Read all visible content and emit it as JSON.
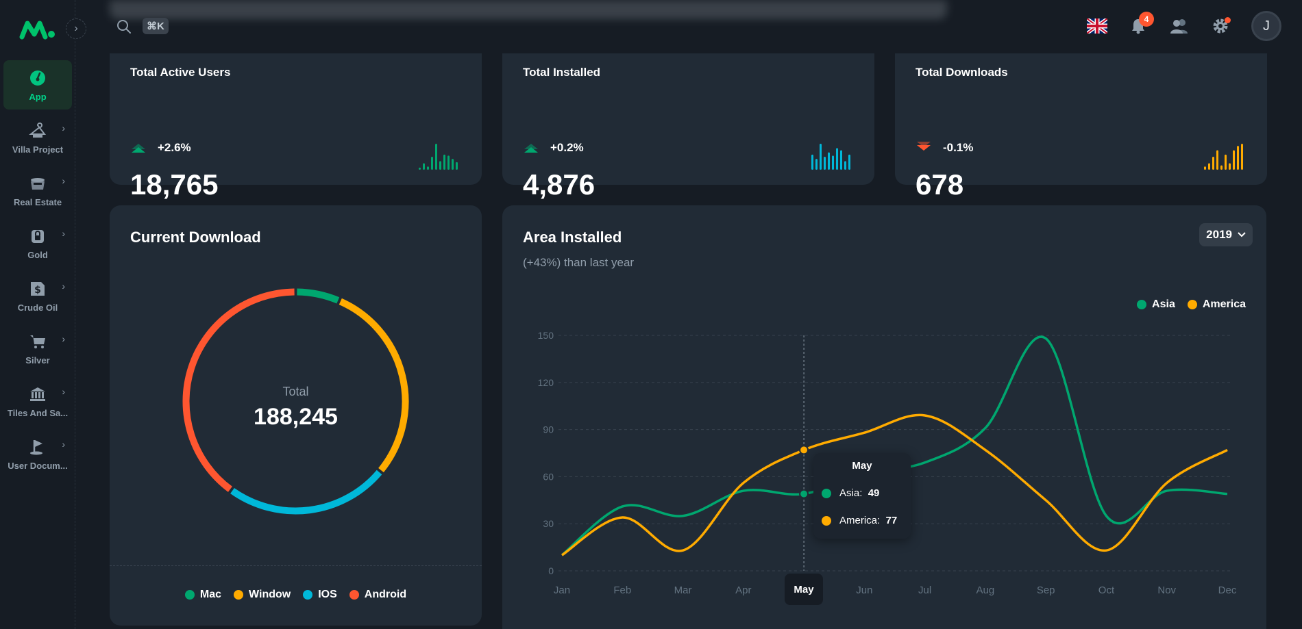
{
  "sidebar": {
    "items": [
      {
        "label": "App",
        "icon": "dashboard-icon",
        "active": true
      },
      {
        "label": "Villa Project",
        "icon": "hanger-icon"
      },
      {
        "label": "Real Estate",
        "icon": "pot-icon"
      },
      {
        "label": "Gold",
        "icon": "lock-icon"
      },
      {
        "label": "Crude Oil",
        "icon": "dollar-doc-icon"
      },
      {
        "label": "Silver",
        "icon": "cart-icon"
      },
      {
        "label": "Tiles And Sa...",
        "icon": "bank-icon"
      },
      {
        "label": "User Docum...",
        "icon": "flag-icon"
      }
    ]
  },
  "header": {
    "search_shortcut": "⌘K",
    "notifications_count": "4",
    "avatar_initial": "J"
  },
  "stats": [
    {
      "title": "Total Active Users",
      "change": "+2.6%",
      "trend": "up",
      "value": "18,765",
      "color": "#00a76f",
      "bars": [
        2,
        6,
        3,
        12,
        24,
        8,
        14,
        13,
        10,
        7
      ]
    },
    {
      "title": "Total Installed",
      "change": "+0.2%",
      "trend": "up",
      "value": "4,876",
      "color": "#00b8d9",
      "bars": [
        14,
        10,
        24,
        12,
        16,
        13,
        20,
        18,
        8,
        14
      ]
    },
    {
      "title": "Total Downloads",
      "change": "-0.1%",
      "trend": "down",
      "value": "678",
      "color": "#ffab00",
      "bars": [
        3,
        6,
        12,
        18,
        4,
        14,
        6,
        18,
        22,
        24
      ]
    }
  ],
  "current_download": {
    "title": "Current Download",
    "total_label": "Total",
    "total_value": "188,245",
    "legend": [
      {
        "name": "Mac",
        "color": "#00a76f"
      },
      {
        "name": "Window",
        "color": "#ffab00"
      },
      {
        "name": "IOS",
        "color": "#00b8d9"
      },
      {
        "name": "Android",
        "color": "#ff5630"
      }
    ]
  },
  "area_installed": {
    "title": "Area Installed",
    "subtitle": "(+43%) than last year",
    "year": "2019",
    "tooltip": {
      "month": "May",
      "rows": [
        {
          "name": "Asia",
          "value": "49"
        },
        {
          "name": "America",
          "value": "77"
        }
      ]
    }
  },
  "chart_data": {
    "type": "line",
    "x": [
      "Jan",
      "Feb",
      "Mar",
      "Apr",
      "May",
      "Jun",
      "Jul",
      "Aug",
      "Sep",
      "Oct",
      "Nov",
      "Dec"
    ],
    "series": [
      {
        "name": "Asia",
        "color": "#00a76f",
        "values": [
          10,
          41,
          35,
          51,
          49,
          62,
          69,
          91,
          148,
          35,
          51,
          49
        ]
      },
      {
        "name": "America",
        "color": "#ffab00",
        "values": [
          10,
          34,
          13,
          56,
          77,
          88,
          99,
          77,
          45,
          13,
          56,
          77
        ]
      }
    ],
    "y_ticks": [
      0,
      30,
      60,
      90,
      120,
      150
    ],
    "ylim": [
      0,
      150
    ],
    "grid": true,
    "legend_position": "top-right",
    "donut": [
      {
        "name": "Mac",
        "value": 0.065
      },
      {
        "name": "Window",
        "value": 0.295
      },
      {
        "name": "IOS",
        "value": 0.24
      },
      {
        "name": "Android",
        "value": 0.4
      }
    ]
  }
}
